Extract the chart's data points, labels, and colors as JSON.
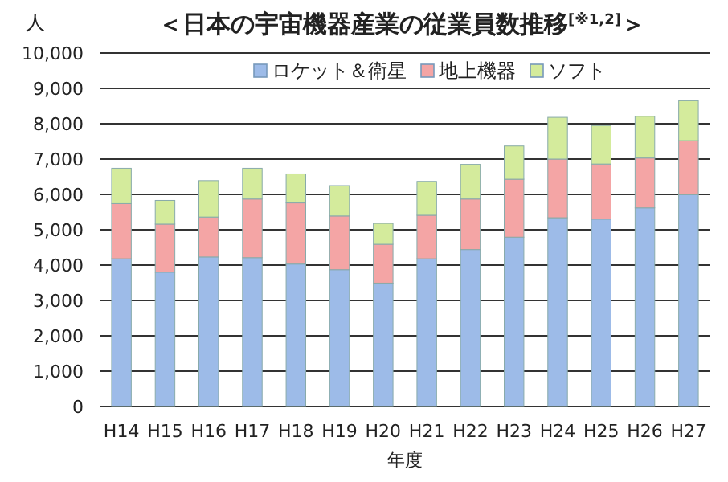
{
  "chart_data": {
    "type": "bar",
    "stacked": true,
    "title": "＜日本の宇宙機器産業の従業員数推移$^{[※1,2]}$＞",
    "xlabel": "年度",
    "ylabel": "人",
    "categories": [
      "H14",
      "H15",
      "H16",
      "H17",
      "H18",
      "H19",
      "H20",
      "H21",
      "H22",
      "H23",
      "H24",
      "H25",
      "H26",
      "H27"
    ],
    "series": [
      {
        "name": "ロケット＆衛星",
        "color": "#9dbbe8",
        "values": [
          4180,
          3800,
          4230,
          4210,
          4030,
          3870,
          3490,
          4180,
          4440,
          4790,
          5340,
          5300,
          5620,
          5990
        ]
      },
      {
        "name": "地上機器",
        "color": "#f4a5a5",
        "values": [
          1560,
          1360,
          1130,
          1660,
          1730,
          1520,
          1100,
          1230,
          1430,
          1640,
          1660,
          1560,
          1410,
          1530
        ]
      },
      {
        "name": "ソフト",
        "color": "#d4eb9c",
        "values": [
          1000,
          670,
          1030,
          870,
          820,
          860,
          590,
          960,
          980,
          940,
          1180,
          1090,
          1180,
          1130
        ]
      }
    ],
    "ylim": [
      0,
      10000
    ],
    "yticks": [
      {
        "value": 0,
        "label": "0"
      },
      {
        "value": 1000,
        "label": "1,000"
      },
      {
        "value": 2000,
        "label": "2,000"
      },
      {
        "value": 3000,
        "label": "3,000"
      },
      {
        "value": 4000,
        "label": "4,000"
      },
      {
        "value": 5000,
        "label": "5,000"
      },
      {
        "value": 6000,
        "label": "6,000"
      },
      {
        "value": 7000,
        "label": "7,000"
      },
      {
        "value": 8000,
        "label": "8,000"
      },
      {
        "value": 9000,
        "label": "9,000"
      },
      {
        "value": 10000,
        "label": "10,000"
      }
    ],
    "grid": "y",
    "legend": "top"
  }
}
